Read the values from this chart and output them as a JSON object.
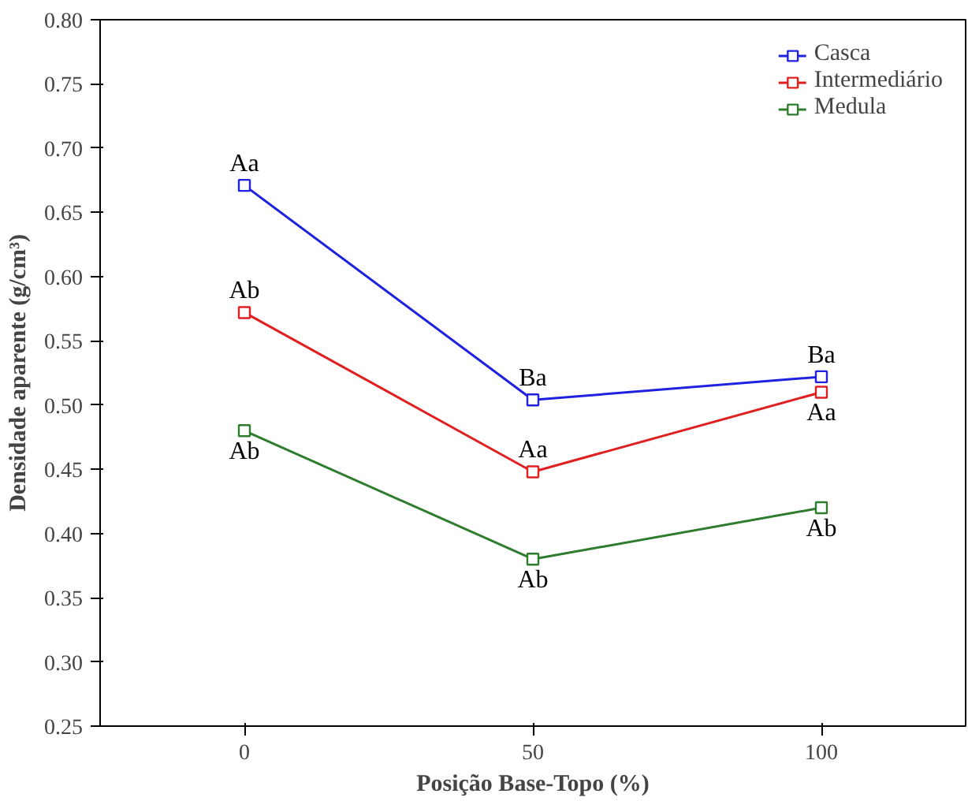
{
  "chart_data": {
    "type": "line",
    "x": [
      0,
      50,
      100
    ],
    "series": [
      {
        "name": "Medula",
        "color": "#2e7d2e",
        "values": [
          0.48,
          0.38,
          0.42
        ]
      },
      {
        "name": "Intermediário",
        "color": "#e02020",
        "values": [
          0.572,
          0.448,
          0.51
        ]
      },
      {
        "name": "Casca",
        "color": "#2020e0",
        "values": [
          0.671,
          0.504,
          0.522
        ]
      }
    ],
    "xlabel": "Posição Base-Topo (%)",
    "ylabel": "Densidade aparente (g/cm³)",
    "xlim": [
      -25,
      125
    ],
    "xticks": [
      0,
      50,
      100
    ],
    "ylim": [
      0.25,
      0.8
    ],
    "yticks": [
      {
        "value": 0.25,
        "label": "0.25"
      },
      {
        "value": 0.3,
        "label": "0.30"
      },
      {
        "value": 0.35,
        "label": "0.35"
      },
      {
        "value": 0.4,
        "label": "0.40"
      },
      {
        "value": 0.45,
        "label": "0.45"
      },
      {
        "value": 0.5,
        "label": "0.50"
      },
      {
        "value": 0.55,
        "label": "0.55"
      },
      {
        "value": 0.6,
        "label": "0.60"
      },
      {
        "value": 0.65,
        "label": "0.65"
      },
      {
        "value": 0.7,
        "label": "0.70"
      },
      {
        "value": 0.75,
        "label": "0.75"
      },
      {
        "value": 0.8,
        "label": "0.80"
      }
    ],
    "annotations": [
      {
        "text": "Aa",
        "x": 0,
        "y": 0.671
      },
      {
        "text": "Ab",
        "x": 0,
        "y": 0.572
      },
      {
        "text": "Ab",
        "x": 0,
        "y": 0.48
      },
      {
        "text": "Ba",
        "x": 50,
        "y": 0.504
      },
      {
        "text": "Aa",
        "x": 50,
        "y": 0.448
      },
      {
        "text": "Ab",
        "x": 50,
        "y": 0.38
      },
      {
        "text": "Ba",
        "x": 100,
        "y": 0.522
      },
      {
        "text": "Aa",
        "x": 100,
        "y": 0.51
      },
      {
        "text": "Ab",
        "x": 100,
        "y": 0.42
      }
    ],
    "legend": "top right",
    "marker": "square",
    "line_style": "solid",
    "grid": false
  }
}
